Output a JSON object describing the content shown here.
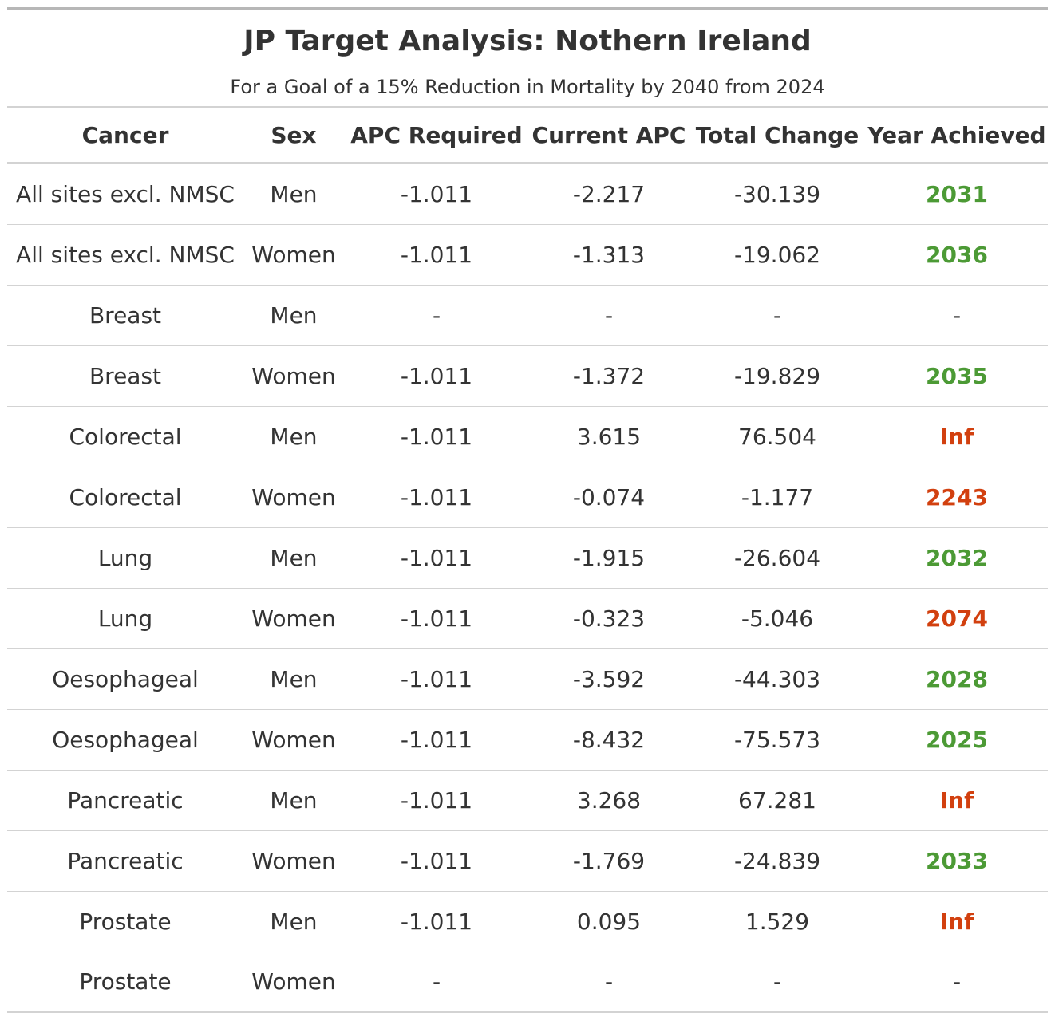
{
  "title": "JP Target Analysis: Nothern Ireland",
  "subtitle": "For a Goal of a 15% Reduction in Mortality by 2040 from 2024",
  "colors": {
    "achieved": "#4c9a35",
    "not_achieved": "#d2400f",
    "neutral": "#333333"
  },
  "columns": [
    "Cancer",
    "Sex",
    "APC Required",
    "Current APC",
    "Total Change",
    "Year Achieved"
  ],
  "rows": [
    {
      "cancer": "All sites excl. NMSC",
      "sex": "Men",
      "apc_required": "-1.011",
      "current_apc": "-2.217",
      "total_change": "-30.139",
      "year_achieved": "2031",
      "status": "achieved"
    },
    {
      "cancer": "All sites excl. NMSC",
      "sex": "Women",
      "apc_required": "-1.011",
      "current_apc": "-1.313",
      "total_change": "-19.062",
      "year_achieved": "2036",
      "status": "achieved"
    },
    {
      "cancer": "Breast",
      "sex": "Men",
      "apc_required": "-",
      "current_apc": "-",
      "total_change": "-",
      "year_achieved": "-",
      "status": "neutral"
    },
    {
      "cancer": "Breast",
      "sex": "Women",
      "apc_required": "-1.011",
      "current_apc": "-1.372",
      "total_change": "-19.829",
      "year_achieved": "2035",
      "status": "achieved"
    },
    {
      "cancer": "Colorectal",
      "sex": "Men",
      "apc_required": "-1.011",
      "current_apc": "3.615",
      "total_change": "76.504",
      "year_achieved": "Inf",
      "status": "not_achieved"
    },
    {
      "cancer": "Colorectal",
      "sex": "Women",
      "apc_required": "-1.011",
      "current_apc": "-0.074",
      "total_change": "-1.177",
      "year_achieved": "2243",
      "status": "not_achieved"
    },
    {
      "cancer": "Lung",
      "sex": "Men",
      "apc_required": "-1.011",
      "current_apc": "-1.915",
      "total_change": "-26.604",
      "year_achieved": "2032",
      "status": "achieved"
    },
    {
      "cancer": "Lung",
      "sex": "Women",
      "apc_required": "-1.011",
      "current_apc": "-0.323",
      "total_change": "-5.046",
      "year_achieved": "2074",
      "status": "not_achieved"
    },
    {
      "cancer": "Oesophageal",
      "sex": "Men",
      "apc_required": "-1.011",
      "current_apc": "-3.592",
      "total_change": "-44.303",
      "year_achieved": "2028",
      "status": "achieved"
    },
    {
      "cancer": "Oesophageal",
      "sex": "Women",
      "apc_required": "-1.011",
      "current_apc": "-8.432",
      "total_change": "-75.573",
      "year_achieved": "2025",
      "status": "achieved"
    },
    {
      "cancer": "Pancreatic",
      "sex": "Men",
      "apc_required": "-1.011",
      "current_apc": "3.268",
      "total_change": "67.281",
      "year_achieved": "Inf",
      "status": "not_achieved"
    },
    {
      "cancer": "Pancreatic",
      "sex": "Women",
      "apc_required": "-1.011",
      "current_apc": "-1.769",
      "total_change": "-24.839",
      "year_achieved": "2033",
      "status": "achieved"
    },
    {
      "cancer": "Prostate",
      "sex": "Men",
      "apc_required": "-1.011",
      "current_apc": "0.095",
      "total_change": "1.529",
      "year_achieved": "Inf",
      "status": "not_achieved"
    },
    {
      "cancer": "Prostate",
      "sex": "Women",
      "apc_required": "-",
      "current_apc": "-",
      "total_change": "-",
      "year_achieved": "-",
      "status": "neutral"
    }
  ]
}
